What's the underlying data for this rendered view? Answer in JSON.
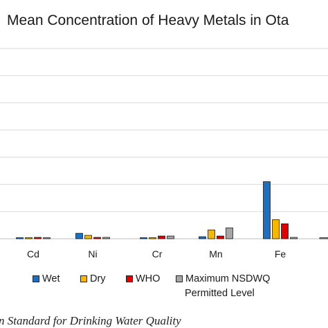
{
  "chart_data": {
    "type": "bar",
    "title": "Mean Concentration of Heavy Metals in Ota",
    "categories": [
      "Cd",
      "Ni",
      "Cr",
      "Mn",
      "Fe"
    ],
    "grid": true,
    "legend_position": "bottom",
    "series": [
      {
        "name": "Wet",
        "color": "#1f6fc0",
        "values": [
          0.005,
          0.08,
          0.01,
          0.03,
          0.84
        ]
      },
      {
        "name": "Dry",
        "color": "#f5b800",
        "values": [
          0.005,
          0.05,
          0.01,
          0.13,
          0.28
        ]
      },
      {
        "name": "WHO",
        "color": "#e00000",
        "values": [
          0.02,
          0.02,
          0.04,
          0.04,
          0.22
        ]
      },
      {
        "name": "Maximum NSDWQ",
        "color": "#a6a6a6",
        "values": [
          0.01,
          0.02,
          0.04,
          0.16,
          0.02
        ]
      }
    ],
    "legend_second_line": "Permitted Level",
    "ylim": [
      0,
      2.8
    ],
    "gridline_step": 0.4
  },
  "caption": "n Standard for Drinking Water Quality"
}
